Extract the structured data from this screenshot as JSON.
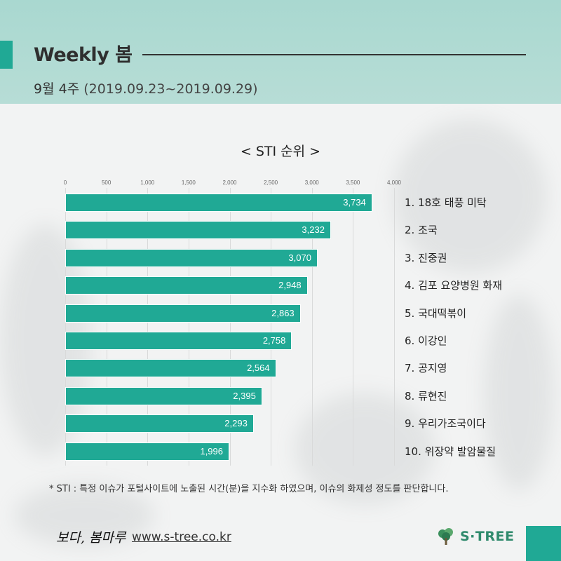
{
  "header": {
    "title": "Weekly 봄",
    "week": "9월 4주",
    "date_range": "(2019.09.23~2019.09.29)"
  },
  "chart_data": {
    "type": "bar",
    "orientation": "horizontal",
    "title": "< STI 순위 >",
    "categories": [
      "1. 18호 태풍 미탁",
      "2. 조국",
      "3. 진중권",
      "4. 김포 요양병원 화재",
      "5. 국대떡볶이",
      "6. 이강인",
      "7. 공지영",
      "8. 류현진",
      "9. 우리가조국이다",
      "10. 위장약 발암물질"
    ],
    "values": [
      3734,
      3232,
      3070,
      2948,
      2863,
      2758,
      2564,
      2395,
      2293,
      1996
    ],
    "value_labels": [
      "3,734",
      "3,232",
      "3,070",
      "2,948",
      "2,863",
      "2,758",
      "2,564",
      "2,395",
      "2,293",
      "1,996"
    ],
    "xlim": [
      0,
      4000
    ],
    "x_ticks": [
      "0",
      "500",
      "1,000",
      "1,500",
      "2,000",
      "2,500",
      "3,000",
      "3,500",
      "4,000"
    ],
    "grid": true,
    "color": "#20a995"
  },
  "footnote": "* STI : 특정 이슈가 포털사이트에 노출된 시간(분)을 지수화 하였으며, 이슈의 화제성 정도를 판단합니다.",
  "footer": {
    "signature": "보다, 봄마루",
    "url": "www.s-tree.co.kr",
    "brand": "S·TREE"
  },
  "colors": {
    "accent": "#20a995",
    "header_band": "#b0dbd3",
    "brand_text": "#2f8a6c"
  }
}
